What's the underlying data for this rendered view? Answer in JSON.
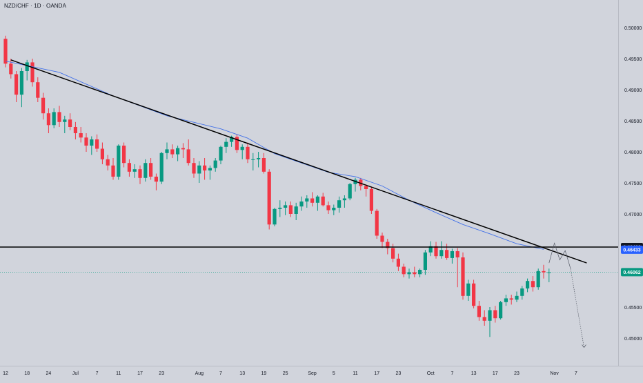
{
  "header": {
    "symbol_title": "NZD/CHF · 1D · OANDA"
  },
  "chart_data": {
    "type": "candlestick",
    "symbol": "NZD/CHF",
    "timeframe": "1D",
    "source": "OANDA",
    "ylim": [
      0.4485,
      0.5008
    ],
    "y_ticks": [
      "0.50000",
      "0.49500",
      "0.49000",
      "0.48500",
      "0.48000",
      "0.47500",
      "0.47000",
      "0.45500",
      "0.45000"
    ],
    "x_ticks": [
      {
        "label": "12",
        "bar": 0
      },
      {
        "label": "18",
        "bar": 4
      },
      {
        "label": "24",
        "bar": 8
      },
      {
        "label": "Jul",
        "bar": 13
      },
      {
        "label": "7",
        "bar": 17
      },
      {
        "label": "11",
        "bar": 21
      },
      {
        "label": "17",
        "bar": 25
      },
      {
        "label": "23",
        "bar": 29
      },
      {
        "label": "Aug",
        "bar": 36
      },
      {
        "label": "7",
        "bar": 40
      },
      {
        "label": "13",
        "bar": 44
      },
      {
        "label": "19",
        "bar": 48
      },
      {
        "label": "25",
        "bar": 52
      },
      {
        "label": "Sep",
        "bar": 57
      },
      {
        "label": "5",
        "bar": 61
      },
      {
        "label": "11",
        "bar": 65
      },
      {
        "label": "17",
        "bar": 69
      },
      {
        "label": "23",
        "bar": 73
      },
      {
        "label": "Oct",
        "bar": 79
      },
      {
        "label": "7",
        "bar": 83
      },
      {
        "label": "13",
        "bar": 87
      },
      {
        "label": "17",
        "bar": 91
      },
      {
        "label": "23",
        "bar": 95
      },
      {
        "label": "Nov",
        "bar": 102
      },
      {
        "label": "7",
        "bar": 106
      }
    ],
    "candles": [
      [
        0.4982,
        0.4987,
        0.4936,
        0.4942
      ],
      [
        0.4942,
        0.495,
        0.4918,
        0.4925
      ],
      [
        0.4925,
        0.493,
        0.488,
        0.4892
      ],
      [
        0.4892,
        0.4935,
        0.4872,
        0.493
      ],
      [
        0.493,
        0.4948,
        0.4915,
        0.4944
      ],
      [
        0.4944,
        0.495,
        0.4905,
        0.4912
      ],
      [
        0.4912,
        0.492,
        0.488,
        0.4887
      ],
      [
        0.4887,
        0.4895,
        0.4852,
        0.4862
      ],
      [
        0.4862,
        0.487,
        0.483,
        0.4843
      ],
      [
        0.4843,
        0.487,
        0.4838,
        0.4864
      ],
      [
        0.4864,
        0.4874,
        0.484,
        0.4848
      ],
      [
        0.4848,
        0.4858,
        0.483,
        0.4852
      ],
      [
        0.4852,
        0.4862,
        0.4835,
        0.484
      ],
      [
        0.484,
        0.4848,
        0.482,
        0.483
      ],
      [
        0.483,
        0.484,
        0.4815,
        0.4823
      ],
      [
        0.4823,
        0.483,
        0.48,
        0.481
      ],
      [
        0.481,
        0.4825,
        0.4795,
        0.482
      ],
      [
        0.482,
        0.4828,
        0.48,
        0.4805
      ],
      [
        0.4805,
        0.4815,
        0.478,
        0.4788
      ],
      [
        0.4788,
        0.4795,
        0.477,
        0.4778
      ],
      [
        0.4778,
        0.479,
        0.4755,
        0.476
      ],
      [
        0.476,
        0.4812,
        0.4755,
        0.481
      ],
      [
        0.481,
        0.4815,
        0.4775,
        0.4782
      ],
      [
        0.4782,
        0.4788,
        0.476,
        0.4768
      ],
      [
        0.4768,
        0.478,
        0.4758,
        0.4772
      ],
      [
        0.4772,
        0.4778,
        0.4748,
        0.4758
      ],
      [
        0.4758,
        0.4788,
        0.4752,
        0.4782
      ],
      [
        0.4782,
        0.479,
        0.4755,
        0.476
      ],
      [
        0.476,
        0.4765,
        0.4738,
        0.4752
      ],
      [
        0.4752,
        0.48,
        0.4748,
        0.4798
      ],
      [
        0.4798,
        0.4815,
        0.4788,
        0.4804
      ],
      [
        0.4804,
        0.4812,
        0.479,
        0.4796
      ],
      [
        0.4796,
        0.481,
        0.4785,
        0.4806
      ],
      [
        0.4806,
        0.4814,
        0.479,
        0.4804
      ],
      [
        0.4804,
        0.482,
        0.4778,
        0.4782
      ],
      [
        0.4782,
        0.479,
        0.4758,
        0.4765
      ],
      [
        0.4765,
        0.4785,
        0.475,
        0.4778
      ],
      [
        0.4778,
        0.479,
        0.4755,
        0.477
      ],
      [
        0.477,
        0.4778,
        0.4755,
        0.4774
      ],
      [
        0.4774,
        0.479,
        0.4768,
        0.4786
      ],
      [
        0.4786,
        0.481,
        0.478,
        0.4808
      ],
      [
        0.4808,
        0.4822,
        0.4798,
        0.4816
      ],
      [
        0.4816,
        0.4826,
        0.4808,
        0.4824
      ],
      [
        0.4824,
        0.4828,
        0.4798,
        0.4803
      ],
      [
        0.4803,
        0.4812,
        0.4788,
        0.4808
      ],
      [
        0.4808,
        0.4815,
        0.4782,
        0.4788
      ],
      [
        0.4788,
        0.4798,
        0.477,
        0.4788
      ],
      [
        0.4788,
        0.48,
        0.4775,
        0.479
      ],
      [
        0.479,
        0.4798,
        0.4765,
        0.4768
      ],
      [
        0.4768,
        0.4772,
        0.4675,
        0.4683
      ],
      [
        0.4683,
        0.471,
        0.468,
        0.4708
      ],
      [
        0.4708,
        0.4722,
        0.4695,
        0.471
      ],
      [
        0.471,
        0.472,
        0.4698,
        0.4714
      ],
      [
        0.4714,
        0.472,
        0.4695,
        0.47
      ],
      [
        0.47,
        0.4718,
        0.469,
        0.4712
      ],
      [
        0.4712,
        0.4728,
        0.4705,
        0.472
      ],
      [
        0.472,
        0.473,
        0.471,
        0.4725
      ],
      [
        0.4725,
        0.4735,
        0.4712,
        0.4718
      ],
      [
        0.4718,
        0.473,
        0.4705,
        0.4728
      ],
      [
        0.4728,
        0.4734,
        0.4712,
        0.4714
      ],
      [
        0.4714,
        0.472,
        0.47,
        0.4706
      ],
      [
        0.4706,
        0.4715,
        0.4698,
        0.471
      ],
      [
        0.471,
        0.4728,
        0.4702,
        0.4722
      ],
      [
        0.4722,
        0.473,
        0.471,
        0.4725
      ],
      [
        0.4725,
        0.475,
        0.4722,
        0.4748
      ],
      [
        0.4748,
        0.4758,
        0.4736,
        0.4755
      ],
      [
        0.4755,
        0.4758,
        0.4738,
        0.4745
      ],
      [
        0.4745,
        0.4748,
        0.4728,
        0.474
      ],
      [
        0.474,
        0.4744,
        0.47,
        0.4705
      ],
      [
        0.4705,
        0.4708,
        0.466,
        0.4665
      ],
      [
        0.4665,
        0.467,
        0.4645,
        0.4655
      ],
      [
        0.4655,
        0.466,
        0.4635,
        0.4645
      ],
      [
        0.4645,
        0.4652,
        0.4622,
        0.4628
      ],
      [
        0.4628,
        0.4636,
        0.4608,
        0.4615
      ],
      [
        0.4615,
        0.462,
        0.4598,
        0.4603
      ],
      [
        0.4603,
        0.4612,
        0.4596,
        0.4606
      ],
      [
        0.4606,
        0.4615,
        0.4598,
        0.4603
      ],
      [
        0.4603,
        0.4612,
        0.4598,
        0.461
      ],
      [
        0.461,
        0.4642,
        0.4602,
        0.4638
      ],
      [
        0.4638,
        0.4656,
        0.4632,
        0.4648
      ],
      [
        0.4648,
        0.4655,
        0.4628,
        0.4632
      ],
      [
        0.4632,
        0.4656,
        0.4628,
        0.4642
      ],
      [
        0.4642,
        0.4652,
        0.4626,
        0.4629
      ],
      [
        0.4629,
        0.4644,
        0.462,
        0.464
      ],
      [
        0.464,
        0.4645,
        0.4582,
        0.463
      ],
      [
        0.463,
        0.4638,
        0.4562,
        0.4568
      ],
      [
        0.4568,
        0.4594,
        0.456,
        0.4588
      ],
      [
        0.4588,
        0.4594,
        0.4548,
        0.4552
      ],
      [
        0.4552,
        0.456,
        0.4528,
        0.4534
      ],
      [
        0.4534,
        0.4545,
        0.452,
        0.4528
      ],
      [
        0.4528,
        0.455,
        0.4502,
        0.4545
      ],
      [
        0.4545,
        0.4552,
        0.4525,
        0.4532
      ],
      [
        0.4532,
        0.456,
        0.453,
        0.4558
      ],
      [
        0.4558,
        0.457,
        0.4552,
        0.4564
      ],
      [
        0.4564,
        0.457,
        0.4554,
        0.4562
      ],
      [
        0.4562,
        0.4575,
        0.4558,
        0.4568
      ],
      [
        0.4568,
        0.4584,
        0.4562,
        0.458
      ],
      [
        0.458,
        0.4596,
        0.4574,
        0.4592
      ],
      [
        0.4592,
        0.46,
        0.4575,
        0.4582
      ],
      [
        0.4582,
        0.4612,
        0.4578,
        0.4608
      ],
      [
        0.4608,
        0.4618,
        0.4596,
        0.4606
      ],
      [
        0.4606,
        0.4612,
        0.459,
        0.4606
      ]
    ],
    "moving_average": [
      [
        0,
        0.4946
      ],
      [
        10,
        0.4928
      ],
      [
        20,
        0.489
      ],
      [
        30,
        0.4858
      ],
      [
        40,
        0.4837
      ],
      [
        45,
        0.4822
      ],
      [
        50,
        0.4797
      ],
      [
        60,
        0.4767
      ],
      [
        65,
        0.476
      ],
      [
        70,
        0.4745
      ],
      [
        75,
        0.4722
      ],
      [
        80,
        0.4702
      ],
      [
        85,
        0.4683
      ],
      [
        90,
        0.4668
      ],
      [
        95,
        0.4652
      ],
      [
        100,
        0.4643
      ]
    ],
    "trendline": [
      [
        1,
        0.4948
      ],
      [
        108,
        0.4621
      ]
    ],
    "horizontal_level": 0.46466,
    "last_price": 0.46062,
    "price_labels": [
      {
        "text": "0.46466",
        "price": 0.46466,
        "bg": "#131722",
        "fg": "#ffffff"
      },
      {
        "text": "0.46433",
        "price": 0.46423,
        "bg": "#2962ff",
        "fg": "#ffffff"
      },
      {
        "text": "0.46062",
        "price": 0.46062,
        "bg": "#089981",
        "fg": "#ffffff"
      }
    ],
    "projection": [
      [
        101,
        0.4621
      ],
      [
        102,
        0.4653
      ],
      [
        103,
        0.4626
      ],
      [
        104,
        0.4641
      ],
      [
        105,
        0.4612
      ],
      [
        107.5,
        0.4485
      ]
    ],
    "colors": {
      "background": "#d1d4dc",
      "up": "#089981",
      "down": "#f23645",
      "moving_average": "#4472e8",
      "trendline": "#000000",
      "level": "#000000",
      "grid": "#c6c9d1",
      "axis_text": "#131722"
    }
  }
}
